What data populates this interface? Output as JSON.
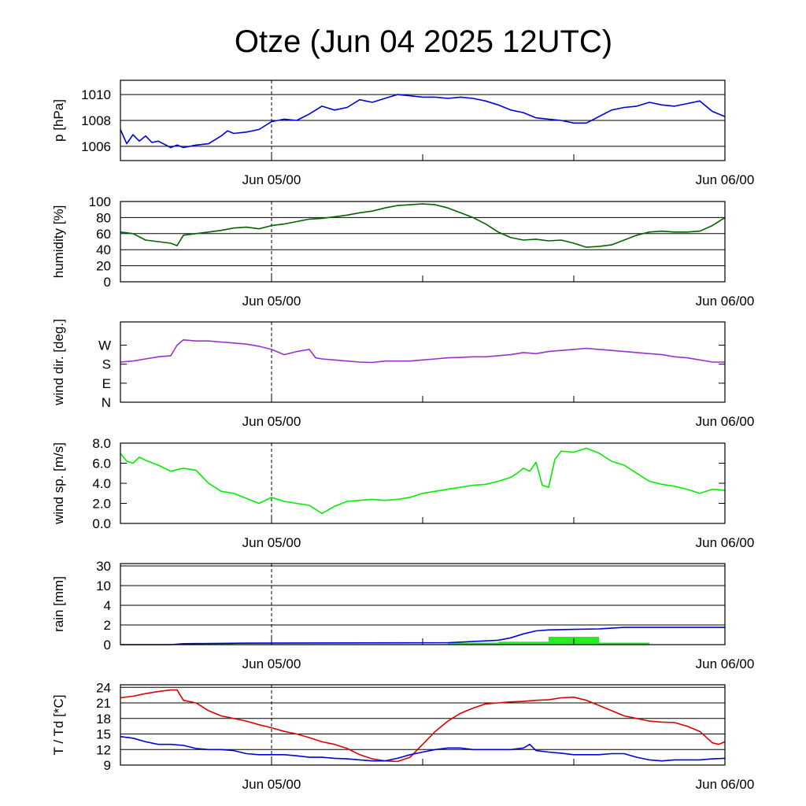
{
  "title": "Otze (Jun 04 2025 12UTC)",
  "x_ticks": [
    "Jun 05/00",
    "Jun 06/00"
  ],
  "chart_data": [
    {
      "type": "line",
      "ylabel": "p [hPa]",
      "ylim": [
        1004.9,
        1011.1
      ],
      "yticks": [
        1006,
        1008,
        1010
      ],
      "yticklabels": [
        "1006",
        "1008",
        "1010"
      ],
      "grid": true,
      "series": [
        {
          "color": "#0000dd",
          "x": [
            0,
            0.5,
            1,
            1.5,
            2,
            2.5,
            3,
            4,
            4.5,
            5,
            6,
            7,
            8,
            8.5,
            9,
            10,
            11,
            12,
            13,
            14,
            15,
            16,
            17,
            18,
            19,
            20,
            21,
            22,
            23,
            24,
            25,
            26,
            27,
            28,
            29,
            30,
            31,
            32,
            33,
            34,
            35,
            36,
            37,
            38,
            39,
            40,
            41,
            42,
            43,
            44,
            45,
            46,
            47,
            48
          ],
          "y": [
            1007.3,
            1006.2,
            1006.9,
            1006.4,
            1006.8,
            1006.3,
            1006.4,
            1005.9,
            1006.1,
            1005.9,
            1006.1,
            1006.2,
            1006.8,
            1007.2,
            1007.0,
            1007.1,
            1007.3,
            1007.9,
            1008.1,
            1008.0,
            1008.5,
            1009.1,
            1008.8,
            1009.0,
            1009.6,
            1009.4,
            1009.7,
            1010.0,
            1009.9,
            1009.8,
            1009.8,
            1009.7,
            1009.8,
            1009.7,
            1009.5,
            1009.2,
            1008.8,
            1008.6,
            1008.2,
            1008.1,
            1008.0,
            1007.8,
            1007.8,
            1008.3,
            1008.8,
            1009.0,
            1009.1,
            1009.4,
            1009.2,
            1009.1,
            1009.3,
            1009.5,
            1008.7,
            1008.3
          ]
        }
      ]
    },
    {
      "type": "line",
      "ylabel": "humidity [%]",
      "ylim": [
        0,
        100
      ],
      "yticks": [
        0,
        20,
        40,
        60,
        80,
        100
      ],
      "yticklabels": [
        "0",
        "20",
        "40",
        "60",
        "80",
        "100"
      ],
      "grid": true,
      "series": [
        {
          "color": "#006400",
          "x": [
            0,
            1,
            2,
            3,
            4,
            4.5,
            5,
            6,
            7,
            8,
            9,
            10,
            11,
            12,
            13,
            14,
            15,
            16,
            17,
            18,
            19,
            20,
            21,
            22,
            23,
            24,
            25,
            26,
            27,
            28,
            29,
            30,
            31,
            32,
            33,
            34,
            35,
            36,
            37,
            38,
            39,
            40,
            41,
            42,
            43,
            44,
            45,
            46,
            47,
            48
          ],
          "y": [
            62,
            60,
            52,
            50,
            48,
            45,
            58,
            60,
            62,
            64,
            67,
            68,
            66,
            70,
            72,
            75,
            78,
            79,
            81,
            83,
            86,
            88,
            92,
            95,
            96,
            97,
            96,
            92,
            86,
            80,
            72,
            62,
            55,
            52,
            53,
            51,
            52,
            48,
            43,
            44,
            46,
            52,
            58,
            62,
            63,
            62,
            62,
            63,
            70,
            80
          ]
        }
      ]
    },
    {
      "type": "line",
      "ylabel": "wind dir. [deg.]",
      "ylim": [
        0,
        380
      ],
      "yticks": [
        0,
        90,
        180,
        270
      ],
      "yticklabels": [
        "N",
        "E",
        "S",
        "W"
      ],
      "grid": false,
      "series": [
        {
          "color": "#9932cc",
          "x": [
            0,
            1,
            2,
            3,
            4,
            4.5,
            5,
            6,
            7,
            8,
            9,
            10,
            11,
            12,
            13,
            14,
            15,
            15.5,
            16,
            17,
            18,
            19,
            20,
            21,
            22,
            23,
            24,
            25,
            26,
            27,
            28,
            29,
            30,
            31,
            32,
            33,
            34,
            35,
            36,
            37,
            38,
            39,
            40,
            41,
            42,
            43,
            44,
            45,
            46,
            47,
            48
          ],
          "y": [
            190,
            195,
            205,
            215,
            220,
            270,
            295,
            290,
            290,
            285,
            280,
            275,
            265,
            250,
            225,
            240,
            250,
            210,
            205,
            200,
            195,
            190,
            188,
            195,
            195,
            195,
            200,
            205,
            210,
            212,
            215,
            215,
            220,
            225,
            235,
            230,
            240,
            245,
            250,
            255,
            250,
            245,
            240,
            235,
            230,
            225,
            215,
            210,
            200,
            190,
            190
          ]
        }
      ]
    },
    {
      "type": "line",
      "ylabel": "wind sp. [m/s]",
      "ylim": [
        0,
        8
      ],
      "yticks": [
        0,
        2,
        4,
        6,
        8
      ],
      "yticklabels": [
        "0.0",
        "2.0",
        "4.0",
        "6.0",
        "8.0"
      ],
      "grid": false,
      "series": [
        {
          "color": "#00ee00",
          "x": [
            0,
            0.5,
            1,
            1.5,
            2,
            3,
            4,
            5,
            6,
            7,
            8,
            9,
            10,
            11,
            12,
            13,
            14,
            15,
            16,
            17,
            18,
            19,
            20,
            21,
            22,
            23,
            24,
            25,
            26,
            27,
            28,
            29,
            30,
            31,
            31.5,
            32,
            32.5,
            33,
            33.5,
            34,
            34.5,
            35,
            36,
            37,
            38,
            39,
            40,
            41,
            42,
            43,
            44,
            45,
            46,
            47,
            48
          ],
          "y": [
            7.0,
            6.2,
            6.0,
            6.6,
            6.3,
            5.8,
            5.2,
            5.5,
            5.3,
            4.0,
            3.2,
            3.0,
            2.5,
            2.0,
            2.6,
            2.2,
            2.0,
            1.8,
            1.0,
            1.7,
            2.2,
            2.3,
            2.4,
            2.3,
            2.4,
            2.6,
            3.0,
            3.2,
            3.4,
            3.6,
            3.8,
            3.9,
            4.2,
            4.6,
            5.0,
            5.5,
            5.2,
            6.1,
            3.8,
            3.6,
            6.4,
            7.2,
            7.1,
            7.5,
            7.0,
            6.2,
            5.8,
            5.0,
            4.2,
            3.9,
            3.7,
            3.4,
            3.0,
            3.4,
            3.3
          ]
        }
      ]
    },
    {
      "type": "bar",
      "ylabel": "rain [mm]",
      "ylim": [
        0,
        32
      ],
      "yticks": [
        0,
        2,
        4,
        10,
        30
      ],
      "yticklabels": [
        "0",
        "2",
        "4",
        "10",
        "30"
      ],
      "grid": true,
      "bars": {
        "color": "#22ee22",
        "x_start": [
          5,
          9,
          26,
          30,
          34,
          38
        ],
        "x_end": [
          9,
          26,
          30,
          34,
          38,
          42
        ],
        "values": [
          0.1,
          0.05,
          0.2,
          0.3,
          0.8,
          0.2
        ]
      },
      "series": [
        {
          "color": "#0000dd",
          "x": [
            0,
            4,
            5,
            10,
            26,
            30,
            31,
            32,
            33,
            34,
            36,
            38,
            40,
            48
          ],
          "y": [
            0,
            0,
            0.1,
            0.15,
            0.2,
            0.45,
            0.7,
            1.1,
            1.4,
            1.5,
            1.55,
            1.6,
            1.75,
            1.75
          ]
        }
      ]
    },
    {
      "type": "line",
      "ylabel": "T / Td [*C]",
      "ylim": [
        9,
        24.5
      ],
      "yticks": [
        9,
        12,
        15,
        18,
        21,
        24
      ],
      "yticklabels": [
        "9",
        "12",
        "15",
        "18",
        "21",
        "24"
      ],
      "grid": true,
      "series": [
        {
          "color": "#dd0000",
          "x": [
            0,
            1,
            2,
            3,
            4,
            4.5,
            5,
            6,
            7,
            8,
            9,
            10,
            11,
            12,
            13,
            14,
            15,
            16,
            17,
            18,
            19,
            20,
            21,
            22,
            23,
            24,
            25,
            26,
            27,
            28,
            29,
            30,
            31,
            32,
            33,
            34,
            35,
            36,
            37,
            38,
            39,
            40,
            41,
            42,
            43,
            44,
            45,
            46,
            47,
            47.5,
            48
          ],
          "y": [
            22.0,
            22.3,
            22.8,
            23.2,
            23.5,
            23.5,
            21.5,
            21.0,
            19.5,
            18.5,
            18.0,
            17.5,
            16.8,
            16.2,
            15.5,
            15.0,
            14.3,
            13.5,
            13.0,
            12.2,
            11.0,
            10.2,
            9.8,
            9.7,
            10.5,
            13.0,
            15.5,
            17.5,
            19.0,
            20.0,
            20.8,
            21.0,
            21.2,
            21.3,
            21.5,
            21.6,
            22.0,
            22.1,
            21.5,
            20.5,
            19.5,
            18.5,
            18.0,
            17.5,
            17.3,
            17.2,
            16.5,
            15.5,
            13.3,
            13.0,
            13.5
          ]
        },
        {
          "color": "#0000dd",
          "x": [
            0,
            1,
            2,
            3,
            4,
            5,
            6,
            7,
            8,
            9,
            10,
            11,
            12,
            13,
            14,
            15,
            16,
            17,
            18,
            19,
            20,
            21,
            22,
            23,
            24,
            25,
            26,
            27,
            28,
            29,
            30,
            31,
            32,
            32.5,
            33,
            34,
            35,
            36,
            37,
            38,
            39,
            40,
            41,
            42,
            43,
            44,
            45,
            46,
            47,
            48
          ],
          "y": [
            14.5,
            14.2,
            13.5,
            13.0,
            13.0,
            12.8,
            12.2,
            12.0,
            12.0,
            11.8,
            11.2,
            11.0,
            11.0,
            11.0,
            10.8,
            10.5,
            10.5,
            10.3,
            10.2,
            10.0,
            9.8,
            9.8,
            10.3,
            11.0,
            11.5,
            12.0,
            12.3,
            12.3,
            12.0,
            12.0,
            12.0,
            12.0,
            12.3,
            13.0,
            11.8,
            11.5,
            11.3,
            11.0,
            11.0,
            11.0,
            11.2,
            11.2,
            10.5,
            10.0,
            9.8,
            10.0,
            10.0,
            10.0,
            10.2,
            10.3
          ]
        }
      ]
    }
  ]
}
